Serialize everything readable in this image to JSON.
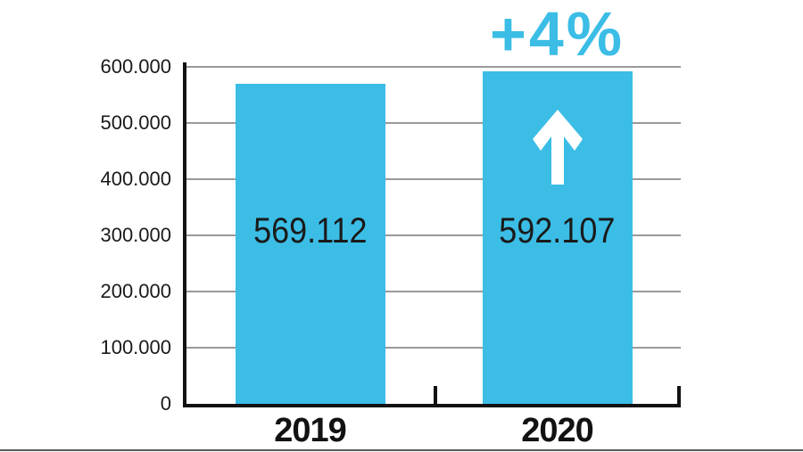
{
  "chart_data": {
    "type": "bar",
    "title": "",
    "xlabel": "",
    "ylabel": "",
    "categories": [
      "2019",
      "2020"
    ],
    "values": [
      569112,
      592107
    ],
    "value_labels": [
      "569.112",
      "592.107"
    ],
    "ylim": [
      0,
      600000
    ],
    "yticks": [
      0,
      100000,
      200000,
      300000,
      400000,
      500000,
      600000
    ],
    "ytick_labels": [
      "0",
      "100.000",
      "200.000",
      "300.000",
      "400.000",
      "500.000",
      "600.000"
    ],
    "grid": true,
    "legend": false,
    "annotation": {
      "text": "+4%",
      "applies_to_category": "2020",
      "icon": "arrow-up-icon"
    },
    "colors": {
      "bar": "#3bbde6",
      "annotation_text": "#3bbde6",
      "gridline": "#999999",
      "axis": "#121212",
      "value_label": "#1a1a1a",
      "arrow": "#ffffff",
      "bottom_rule": "#55595c"
    }
  }
}
